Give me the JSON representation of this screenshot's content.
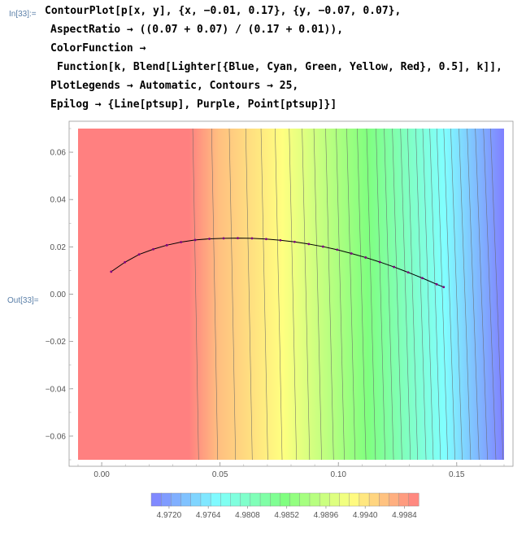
{
  "cell": {
    "in_label": "In[33]:=",
    "out_label": "Out[33]="
  },
  "code": {
    "lines": [
      "ContourPlot[p[x, y], {x, −0.01, 0.17}, {y, −0.07, 0.07},",
      "AspectRatio → ((0.07 + 0.07) / (0.17 + 0.01)),",
      "ColorFunction →",
      "Function[k, Blend[Lighter[{Blue, Cyan, Green, Yellow, Red}, 0.5], k]],",
      "PlotLegends → Automatic, Contours → 25,",
      "Epilog → {Line[ptsup], Purple, Point[ptsup]}]"
    ]
  },
  "chart_data": {
    "type": "heatmap",
    "subtype": "contour",
    "title": "",
    "xlabel": "",
    "ylabel": "",
    "xlim": [
      -0.01,
      0.17
    ],
    "ylim": [
      -0.07,
      0.07
    ],
    "x_ticks": [
      0.0,
      0.05,
      0.1,
      0.15
    ],
    "x_tick_labels": [
      "0.00",
      "0.05",
      "0.10",
      "0.15"
    ],
    "y_ticks": [
      0.06,
      0.04,
      0.02,
      0.0,
      -0.02,
      -0.04,
      -0.06
    ],
    "y_tick_labels": [
      "0.06",
      "0.04",
      "0.02",
      "0.00",
      "−0.02",
      "−0.04",
      "−0.06"
    ],
    "contour_count": 25,
    "contour_x_positions_at_y0": [
      0.0395,
      0.0475,
      0.055,
      0.062,
      0.0685,
      0.0745,
      0.0805,
      0.086,
      0.091,
      0.096,
      0.1005,
      0.105,
      0.1095,
      0.1135,
      0.1175,
      0.121,
      0.1245,
      0.128,
      0.131,
      0.1345,
      0.1375,
      0.1405,
      0.1435,
      0.1465,
      0.1495,
      0.153,
      0.1565,
      0.16,
      0.1635,
      0.1665
    ],
    "color_scheme": [
      "#8080ff",
      "#80ffff",
      "#80ff80",
      "#ffff80",
      "#ff8080"
    ],
    "epilog_line": {
      "color": "#000000",
      "point_color": "#800080",
      "points": [
        [
          0.004,
          0.0095
        ],
        [
          0.0098,
          0.0135
        ],
        [
          0.0158,
          0.0168
        ],
        [
          0.0218,
          0.019
        ],
        [
          0.0275,
          0.0207
        ],
        [
          0.0335,
          0.022
        ],
        [
          0.0395,
          0.0229
        ],
        [
          0.0455,
          0.0234
        ],
        [
          0.0515,
          0.0236
        ],
        [
          0.0575,
          0.0237
        ],
        [
          0.0635,
          0.0236
        ],
        [
          0.0695,
          0.0233
        ],
        [
          0.0755,
          0.0228
        ],
        [
          0.0815,
          0.0221
        ],
        [
          0.0875,
          0.0212
        ],
        [
          0.0935,
          0.0201
        ],
        [
          0.0995,
          0.0188
        ],
        [
          0.1055,
          0.0172
        ],
        [
          0.1115,
          0.0155
        ],
        [
          0.1175,
          0.0136
        ],
        [
          0.1235,
          0.0115
        ],
        [
          0.1295,
          0.0092
        ],
        [
          0.1355,
          0.0068
        ],
        [
          0.1415,
          0.0042
        ],
        [
          0.1445,
          0.003
        ]
      ]
    },
    "legend": {
      "placement": "bottom",
      "range": [
        4.97,
        5.0
      ],
      "tick_values": [
        4.972,
        4.9764,
        4.9808,
        4.9852,
        4.9896,
        4.994,
        4.9984
      ],
      "tick_labels": [
        "4.9720",
        "4.9764",
        "4.9808",
        "4.9852",
        "4.9896",
        "4.9940",
        "4.9984"
      ],
      "swatch_count": 27
    }
  }
}
